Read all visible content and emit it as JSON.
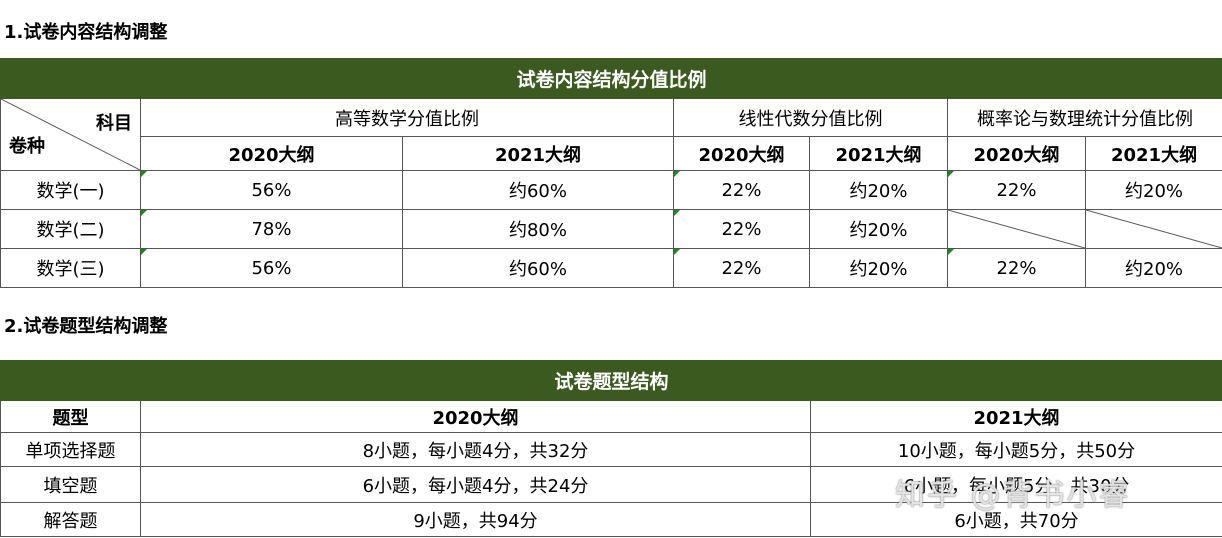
{
  "section1": {
    "title": "1.试卷内容结构调整"
  },
  "table1": {
    "banner": "试卷内容结构分值比例",
    "corner_top": "科目",
    "corner_bottom": "卷种",
    "groups": [
      "高等数学分值比例",
      "线性代数分值比例",
      "概率论与数理统计分值比例"
    ],
    "sub_headers": [
      "2020大纲",
      "2021大纲",
      "2020大纲",
      "2021大纲",
      "2020大纲",
      "2021大纲"
    ],
    "rows": [
      {
        "label": "数学(一)",
        "cells": [
          "56%",
          "约60%",
          "22%",
          "约20%",
          "22%",
          "约20%"
        ]
      },
      {
        "label": "数学(二)",
        "cells": [
          "78%",
          "约80%",
          "22%",
          "约20%",
          "",
          ""
        ]
      },
      {
        "label": "数学(三)",
        "cells": [
          "56%",
          "约60%",
          "22%",
          "约20%",
          "22%",
          "约20%"
        ]
      }
    ]
  },
  "section2": {
    "title": "2.试卷题型结构调整"
  },
  "table2": {
    "banner": "试卷题型结构",
    "headers": [
      "题型",
      "2020大纲",
      "2021大纲"
    ],
    "rows": [
      {
        "label": "单项选择题",
        "cells": [
          "8小题，每小题4分，共32分",
          "10小题，每小题5分，共50分"
        ]
      },
      {
        "label": "填空题",
        "cells": [
          "6小题，每小题4分，共24分",
          "6小题，每小题5分，共30分"
        ]
      },
      {
        "label": "解答题",
        "cells": [
          "9小题，共94分",
          "6小题，共70分"
        ]
      }
    ]
  },
  "watermark": "知乎 @背书小睿"
}
